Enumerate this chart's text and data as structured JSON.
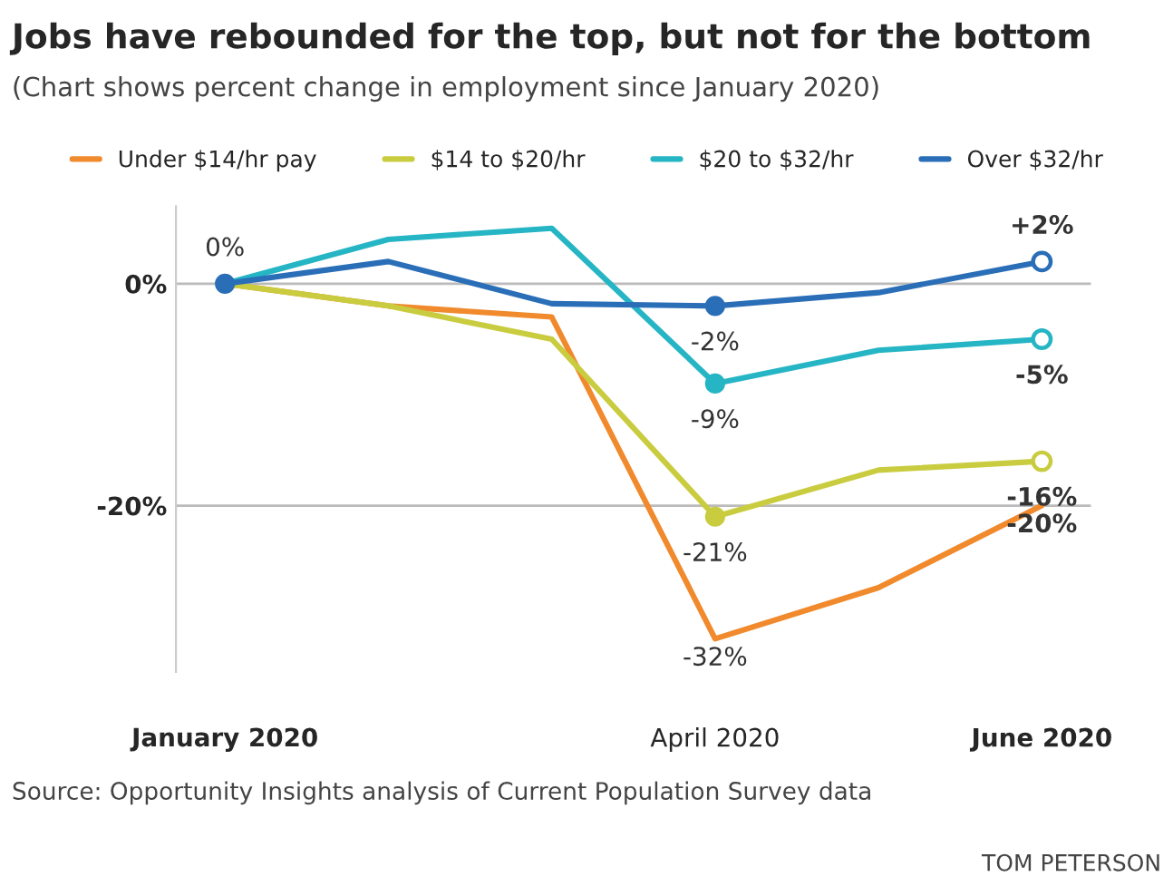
{
  "chart_data": {
    "type": "line",
    "title": "Jobs have rebounded for the top, but not for the bottom",
    "subtitle": "(Chart shows percent change in employment since January 2020)",
    "categories": [
      "January 2020",
      null,
      null,
      "April 2020",
      null,
      "June 2020"
    ],
    "series": [
      {
        "name": "Under $14/hr pay",
        "color": "#f08a2c",
        "values": [
          0,
          -2,
          -3,
          -32,
          -27.4,
          -20
        ],
        "value_labels": [
          null,
          null,
          null,
          "-32%",
          null,
          "-20%"
        ],
        "marker": "none"
      },
      {
        "name": "$14 to $20/hr",
        "color": "#c9cc3f",
        "values": [
          0,
          -2,
          -5,
          -21,
          -16.8,
          -16
        ],
        "value_labels": [
          null,
          null,
          null,
          "-21%",
          null,
          "-16%"
        ]
      },
      {
        "name": "$20 to $32/hr",
        "color": "#25b5c4",
        "values": [
          0,
          4,
          5,
          -9,
          -6,
          -5
        ],
        "value_labels": [
          null,
          null,
          null,
          "-9%",
          null,
          "-5%"
        ]
      },
      {
        "name": "Over $32/hr",
        "color": "#2a6eb8",
        "values": [
          0,
          2,
          -1.8,
          -2,
          -0.8,
          2
        ],
        "value_labels": [
          "0%",
          null,
          null,
          "-2%",
          null,
          "+2%"
        ]
      }
    ],
    "ylim": [
      -35,
      7
    ],
    "yticks": [
      {
        "value": 0,
        "label": "0%"
      },
      {
        "value": -20,
        "label": "-20%"
      }
    ],
    "grid": "y",
    "legend": "top",
    "annotations": [
      "Source: Opportunity Insights analysis of Current Population Survey data",
      "TOM PETERSON"
    ]
  }
}
